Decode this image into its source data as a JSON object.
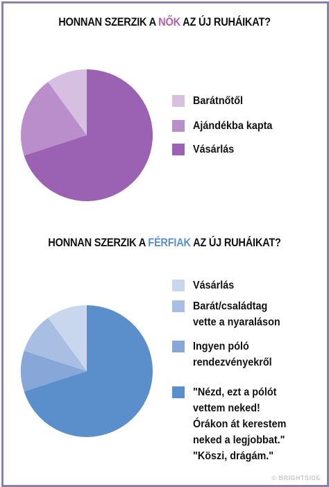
{
  "charts": {
    "women": {
      "title_before": "HONNAN SZERZIK A ",
      "title_highlight": "NŐK",
      "title_after": " AZ ÚJ RUHÁIKAT?"
    },
    "men": {
      "title_before": "HONNAN SZERZIK A ",
      "title_highlight": "FÉRFIAK",
      "title_after": " AZ ÚJ RUHÁIKAT?"
    }
  },
  "chart_data": [
    {
      "type": "pie",
      "title": "HONNAN SZERZIK A NŐK AZ ÚJ RUHÁIKAT?",
      "legend_position": "right",
      "series": [
        {
          "name": "Barátnőtől",
          "value": 10,
          "color": "#d6bfe0"
        },
        {
          "name": "Ajándékba kapta",
          "value": 20,
          "color": "#b98ecb"
        },
        {
          "name": "Vásárlás",
          "value": 70,
          "color": "#9b61b3"
        }
      ]
    },
    {
      "type": "pie",
      "title": "HONNAN SZERZIK A FÉRFIAK AZ ÚJ RUHÁIKAT?",
      "legend_position": "right",
      "series": [
        {
          "name": "Vásárlás",
          "value": 10,
          "color": "#c8d6ee"
        },
        {
          "name": "Barát/családtag\nvette a nyaraláson",
          "value": 10,
          "color": "#a8bfe3"
        },
        {
          "name": "Ingyen póló\nrendezvényekről",
          "value": 10,
          "color": "#86a7d8"
        },
        {
          "name": "\"Nézd, ezt a pólót\nvettem neked!\nÓrákon át kerestem\nneked a legjobbat.\"\n\"Köszi, drágám.\"",
          "value": 70,
          "color": "#5b8fcc"
        }
      ]
    }
  ],
  "credit": "© BRIGHTSIDE"
}
